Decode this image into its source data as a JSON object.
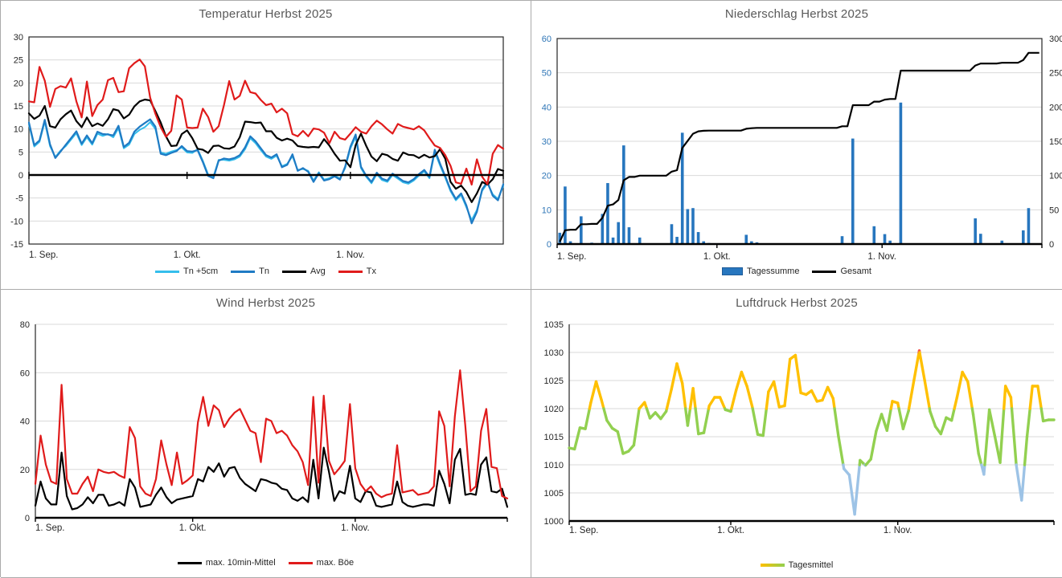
{
  "page": {
    "background": "#FFFFFF",
    "panel_border_color": "#ABABAB",
    "grid_color": "#D9D9D9",
    "title_color": "#595959",
    "axis_text_color": "#262626"
  },
  "chart_data": [
    {
      "id": "temperature",
      "type": "line",
      "title": "Temperatur Herbst 2025",
      "x_tick_labels": [
        "1. Sep.",
        "1. Okt.",
        "1. Nov."
      ],
      "x_tick_days": [
        0,
        30,
        61
      ],
      "n_points": 91,
      "ylim": [
        -15,
        30
      ],
      "ystep": 5,
      "grid": true,
      "box": true,
      "zero_axis": true,
      "legend_position": "bottom",
      "series": [
        {
          "name": "Tn +5cm",
          "color": "#35BEEC",
          "width": 2,
          "values": [
            11.0,
            6.2,
            7.2,
            11.6,
            6.3,
            3.9,
            5.3,
            6.3,
            7.7,
            9.1,
            6.5,
            8.2,
            6.6,
            9.0,
            8.5,
            8.9,
            8.2,
            10.2,
            5.8,
            6.6,
            8.9,
            9.8,
            10.4,
            11.5,
            10.0,
            4.9,
            4.6,
            5.1,
            5.4,
            6.0,
            4.9,
            4.8,
            5.6,
            3.1,
            0.1,
            -0.4,
            3.3,
            3.3,
            3.1,
            3.4,
            4.0,
            5.6,
            8.0,
            6.9,
            5.4,
            4.0,
            3.5,
            4.2,
            1.9,
            2.4,
            4.1,
            1.1,
            1.3,
            0.9,
            -1.2,
            0.6,
            -1.0,
            -0.7,
            -0.1,
            -0.8,
            1.5,
            5.8,
            8.3,
            1.5,
            -0.4,
            -1.8,
            0.2,
            -1.1,
            -1.5,
            0.0,
            -0.8,
            -1.6,
            -1.9,
            -1.2,
            -0.1,
            0.8,
            -0.7,
            5.0,
            2.1,
            -0.6,
            -3.5,
            -5.5,
            -4.3,
            -7.0,
            -9.8,
            -7.6,
            -3.4,
            -1.8,
            -4.2,
            -5.2,
            -2.4
          ]
        },
        {
          "name": "Tn",
          "color": "#1F7BC4",
          "width": 2.2,
          "values": [
            11.4,
            6.5,
            7.5,
            12.0,
            6.7,
            3.7,
            5.1,
            6.6,
            8.0,
            9.5,
            6.8,
            8.6,
            6.9,
            9.4,
            8.9,
            8.8,
            8.6,
            10.7,
            6.1,
            7.0,
            9.4,
            10.5,
            11.3,
            12.1,
            10.5,
            4.6,
            4.3,
            4.8,
            5.2,
            6.3,
            5.2,
            5.1,
            5.4,
            2.8,
            -0.2,
            -0.7,
            3.1,
            3.6,
            3.4,
            3.7,
            4.3,
            6.0,
            8.4,
            7.3,
            5.8,
            4.3,
            3.8,
            4.5,
            1.7,
            2.2,
            4.5,
            0.9,
            1.5,
            0.7,
            -1.5,
            0.4,
            -1.2,
            -0.9,
            -0.3,
            -1.0,
            1.8,
            6.2,
            8.8,
            1.8,
            -0.2,
            -1.5,
            0.5,
            -0.8,
            -1.2,
            0.3,
            -0.5,
            -1.3,
            -1.6,
            -0.9,
            0.2,
            1.1,
            -0.4,
            5.5,
            2.5,
            -0.3,
            -3.2,
            -5.2,
            -4.0,
            -6.6,
            -10.5,
            -8.0,
            -3.1,
            -1.5,
            -4.5,
            -5.5,
            -2.0
          ]
        },
        {
          "name": "Avg",
          "color": "#000000",
          "width": 2.2,
          "values": [
            13.4,
            12.2,
            12.9,
            15.0,
            10.6,
            10.3,
            12.1,
            13.2,
            14.0,
            11.7,
            10.4,
            12.5,
            10.6,
            11.2,
            10.7,
            12.1,
            14.3,
            14.0,
            12.3,
            13.1,
            14.9,
            16.0,
            16.4,
            16.2,
            13.9,
            11.4,
            8.4,
            6.3,
            6.4,
            8.9,
            9.7,
            8.0,
            5.7,
            5.5,
            4.8,
            6.3,
            6.4,
            5.8,
            5.7,
            6.2,
            8.2,
            11.6,
            11.5,
            11.3,
            11.4,
            9.5,
            9.5,
            8.1,
            7.5,
            7.9,
            7.5,
            6.3,
            6.1,
            6.0,
            6.1,
            6.0,
            7.8,
            6.4,
            4.6,
            3.1,
            3.2,
            1.7,
            6.5,
            9.0,
            6.3,
            4.0,
            3.0,
            4.6,
            4.3,
            3.5,
            3.1,
            4.9,
            4.4,
            4.3,
            3.7,
            4.4,
            3.8,
            4.1,
            5.6,
            3.5,
            -1.5,
            -3.0,
            -2.3,
            -3.7,
            -5.9,
            -4.0,
            -1.5,
            -2.1,
            -0.9,
            1.3,
            0.9
          ]
        },
        {
          "name": "Tx",
          "color": "#E01B1B",
          "width": 2.2,
          "values": [
            16.0,
            15.8,
            23.5,
            20.5,
            14.8,
            18.7,
            19.3,
            19.0,
            21.0,
            16.0,
            12.5,
            20.3,
            12.8,
            15.2,
            16.4,
            20.6,
            21.1,
            18.0,
            18.2,
            23.2,
            24.3,
            25.1,
            23.6,
            16.8,
            13.3,
            10.4,
            8.3,
            9.6,
            17.3,
            16.4,
            10.3,
            10.2,
            10.3,
            14.4,
            12.6,
            9.4,
            10.6,
            15.2,
            20.4,
            16.4,
            17.2,
            20.5,
            18.0,
            17.7,
            16.3,
            15.2,
            15.5,
            13.6,
            14.4,
            13.4,
            8.9,
            8.4,
            9.6,
            8.4,
            10.1,
            9.9,
            9.2,
            6.9,
            9.4,
            8.0,
            7.7,
            9.0,
            10.4,
            9.4,
            9.0,
            10.6,
            11.8,
            11.0,
            9.9,
            9.0,
            11.1,
            10.5,
            10.2,
            9.9,
            10.6,
            9.7,
            8.0,
            6.4,
            5.9,
            4.3,
            2.0,
            -1.6,
            -1.9,
            1.4,
            -2.1,
            3.4,
            -0.4,
            -2.0,
            4.6,
            6.5,
            5.7
          ]
        }
      ],
      "legend": [
        {
          "label": "Tn +5cm",
          "type": "line",
          "color": "#35BEEC"
        },
        {
          "label": "Tn",
          "type": "line",
          "color": "#1F7BC4"
        },
        {
          "label": "Avg",
          "type": "line",
          "color": "#000000"
        },
        {
          "label": "Tx",
          "type": "line",
          "color": "#E01B1B"
        }
      ]
    },
    {
      "id": "precipitation",
      "type": "bar+line",
      "title": "Niederschlag Herbst 2025",
      "x_tick_labels": [
        "1. Sep.",
        "1. Okt.",
        "1. Nov."
      ],
      "x_tick_days": [
        0,
        30,
        61
      ],
      "n_points": 91,
      "ylim": [
        0,
        60
      ],
      "ystep": 10,
      "y_axis_color": "#2E75B6",
      "y2lim": [
        0,
        300
      ],
      "y2step": 50,
      "grid": true,
      "box": true,
      "bars": {
        "name": "Tagessumme",
        "color": "#2776BE",
        "border_color": "#1F5C99",
        "values": [
          3.3,
          16.8,
          0.8,
          0,
          8.1,
          0,
          0.4,
          0,
          8.8,
          17.8,
          1.9,
          6.4,
          28.8,
          4.9,
          0,
          1.9,
          0,
          0,
          0,
          0,
          0,
          5.8,
          2.1,
          32.5,
          10.2,
          10.5,
          3.5,
          0.8,
          0.3,
          0,
          0,
          0,
          0,
          0,
          0,
          2.7,
          0.8,
          0.5,
          0,
          0,
          0,
          0,
          0,
          0,
          0,
          0,
          0,
          0,
          0,
          0,
          0,
          0,
          0,
          2.3,
          0,
          30.8,
          0,
          0,
          0,
          5.2,
          0,
          2.9,
          1.0,
          0,
          41.3,
          0,
          0,
          0,
          0,
          0,
          0,
          0,
          0,
          0,
          0,
          0,
          0,
          0,
          7.5,
          3.0,
          0,
          0,
          0,
          1.0,
          0,
          0,
          0,
          4.0,
          10.5,
          0,
          0
        ]
      },
      "line": {
        "name": "Gesamt",
        "color": "#000000",
        "width": 2.2,
        "axis": "right",
        "derived_from": "cumulative sum of Tagessumme"
      },
      "legend": [
        {
          "label": "Tagessumme",
          "type": "bar",
          "color": "#2776BE",
          "border": "#1F5C99"
        },
        {
          "label": "Gesamt",
          "type": "line",
          "color": "#000000"
        }
      ]
    },
    {
      "id": "wind",
      "type": "line",
      "title": "Wind Herbst 2025",
      "x_tick_labels": [
        "1. Sep.",
        "1. Okt.",
        "1. Nov."
      ],
      "x_tick_days": [
        0,
        30,
        61
      ],
      "n_points": 91,
      "ylim": [
        0,
        80
      ],
      "ystep": 20,
      "grid": true,
      "box": false,
      "series": [
        {
          "name": "max. 10min-Mittel",
          "color": "#000000",
          "width": 2.2,
          "values": [
            5,
            15,
            8,
            5.5,
            5.5,
            27,
            9,
            3.5,
            4,
            5.5,
            8.5,
            6,
            9.5,
            9.5,
            5,
            5.5,
            6.5,
            5,
            16,
            12.5,
            4.5,
            5,
            5.5,
            9.5,
            12.5,
            8.5,
            6,
            7.5,
            8,
            8.5,
            9,
            16,
            15,
            21,
            19,
            22.5,
            17,
            20.5,
            21,
            16.5,
            14,
            12.5,
            11,
            16,
            15.5,
            14.5,
            14,
            12,
            11.5,
            8,
            7,
            8.5,
            6.5,
            24,
            8,
            29,
            19,
            7,
            11,
            10,
            21.5,
            8,
            6.5,
            11,
            10.5,
            5,
            4.5,
            5,
            5.5,
            15,
            6.5,
            5,
            4.5,
            5,
            5.5,
            5.5,
            5,
            19.5,
            14,
            6,
            24,
            28.5,
            9.5,
            10,
            9.5,
            22,
            25,
            11,
            10.5,
            12,
            4.5
          ]
        },
        {
          "name": "max. Böe",
          "color": "#E01B1B",
          "width": 2.2,
          "values": [
            14,
            34,
            22,
            15,
            14,
            55,
            16,
            10,
            10,
            14,
            17,
            11,
            20,
            19,
            18.5,
            19,
            17.5,
            16.5,
            37.5,
            33,
            13,
            10,
            9,
            16,
            32,
            22,
            13.5,
            27,
            14,
            15.5,
            17.5,
            39.5,
            50,
            38,
            46.5,
            44.5,
            37.5,
            41,
            43.5,
            45,
            40.5,
            36,
            35,
            23,
            41,
            40,
            35,
            36,
            34,
            30,
            27.5,
            23,
            13.5,
            50,
            14.5,
            50.5,
            23.5,
            18,
            20.5,
            23.5,
            47,
            20.5,
            14,
            11,
            13,
            10,
            8.5,
            9.5,
            10,
            30,
            10.5,
            11,
            11.5,
            9.5,
            10,
            10.5,
            13,
            44,
            38,
            13,
            42,
            61,
            38,
            11,
            13,
            36,
            45,
            21,
            20.5,
            9,
            8
          ]
        }
      ],
      "legend": [
        {
          "label": "max. 10min-Mittel",
          "type": "line",
          "color": "#000000"
        },
        {
          "label": "max. Böe",
          "type": "line",
          "color": "#E01B1B"
        }
      ]
    },
    {
      "id": "pressure",
      "type": "line",
      "title": "Luftdruck Herbst 2025",
      "x_tick_labels": [
        "1. Sep.",
        "1. Okt.",
        "1. Nov."
      ],
      "x_tick_days": [
        0,
        30,
        61
      ],
      "n_points": 91,
      "ylim": [
        1000,
        1035
      ],
      "ystep": 5,
      "grid": true,
      "box": false,
      "series": [
        {
          "name": "Tagesmittel",
          "width": 3.4,
          "color_scale": [
            {
              "min": 1030,
              "color": "#F4544C"
            },
            {
              "min": 1020,
              "color": "#FFC000"
            },
            {
              "min": 1010,
              "color": "#92D050"
            },
            {
              "min": 0,
              "color": "#9DC3E6"
            }
          ],
          "values": [
            1013.0,
            1012.8,
            1016.6,
            1016.4,
            1021.0,
            1024.8,
            1021.5,
            1017.9,
            1016.5,
            1015.9,
            1012.0,
            1012.4,
            1013.5,
            1020.0,
            1021.1,
            1018.3,
            1019.3,
            1018.2,
            1019.5,
            1023.5,
            1028.0,
            1024.5,
            1017.0,
            1023.6,
            1015.5,
            1015.7,
            1020.5,
            1022.0,
            1022.0,
            1019.8,
            1019.5,
            1023.3,
            1026.5,
            1024.0,
            1020.3,
            1015.4,
            1015.2,
            1023.0,
            1024.8,
            1020.3,
            1020.5,
            1028.8,
            1029.5,
            1022.8,
            1022.5,
            1023.2,
            1021.3,
            1021.5,
            1023.8,
            1021.8,
            1015.0,
            1009.3,
            1008.2,
            1001.2,
            1010.8,
            1009.9,
            1011.0,
            1016.0,
            1019.0,
            1016.1,
            1021.3,
            1021.0,
            1016.4,
            1019.6,
            1025.0,
            1030.3,
            1025.0,
            1019.5,
            1016.8,
            1015.5,
            1018.4,
            1017.9,
            1022.0,
            1026.5,
            1024.8,
            1019.0,
            1012.0,
            1008.3,
            1019.8,
            1015.2,
            1010.4,
            1024.0,
            1022.0,
            1010.0,
            1003.7,
            1015.0,
            1024.0,
            1024.0,
            1017.8,
            1018.0,
            1018.0
          ]
        }
      ],
      "legend": [
        {
          "label": "Tagesmittel",
          "type": "gradient",
          "colors": [
            "#FFC000",
            "#92D050"
          ]
        }
      ]
    }
  ]
}
